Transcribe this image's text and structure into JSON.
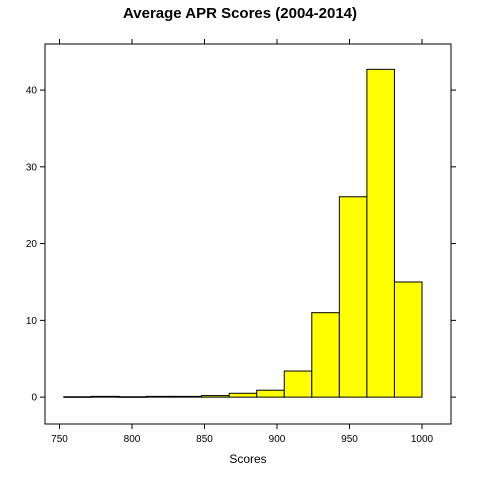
{
  "chart_data": {
    "type": "bar",
    "title": "Average APR Scores (2004-2014)",
    "subtitle": "",
    "xlabel": "Scores",
    "ylabel": "",
    "xlim": [
      740,
      1020
    ],
    "ylim": [
      -3.5,
      46
    ],
    "x_ticks": [
      "750",
      "800",
      "850",
      "900",
      "950",
      "1000"
    ],
    "y_ticks": [
      "0",
      "10",
      "20",
      "30",
      "40"
    ],
    "bin_width": 19,
    "bins": [
      {
        "start": 753,
        "end": 772,
        "value": 0.05
      },
      {
        "start": 772,
        "end": 791,
        "value": 0.1
      },
      {
        "start": 791,
        "end": 810,
        "value": 0.05
      },
      {
        "start": 810,
        "end": 829,
        "value": 0.1
      },
      {
        "start": 829,
        "end": 848,
        "value": 0.1
      },
      {
        "start": 848,
        "end": 867,
        "value": 0.2
      },
      {
        "start": 867,
        "end": 886,
        "value": 0.5
      },
      {
        "start": 886,
        "end": 905,
        "value": 0.9
      },
      {
        "start": 905,
        "end": 924,
        "value": 3.4
      },
      {
        "start": 924,
        "end": 943,
        "value": 11.0
      },
      {
        "start": 943,
        "end": 962,
        "value": 26.1
      },
      {
        "start": 962,
        "end": 981,
        "value": 42.7
      },
      {
        "start": 981,
        "end": 1000,
        "value": 15.0
      }
    ],
    "bar_color": "#ffff00",
    "bar_stroke": "#000000",
    "grid": false,
    "legend": "none"
  }
}
